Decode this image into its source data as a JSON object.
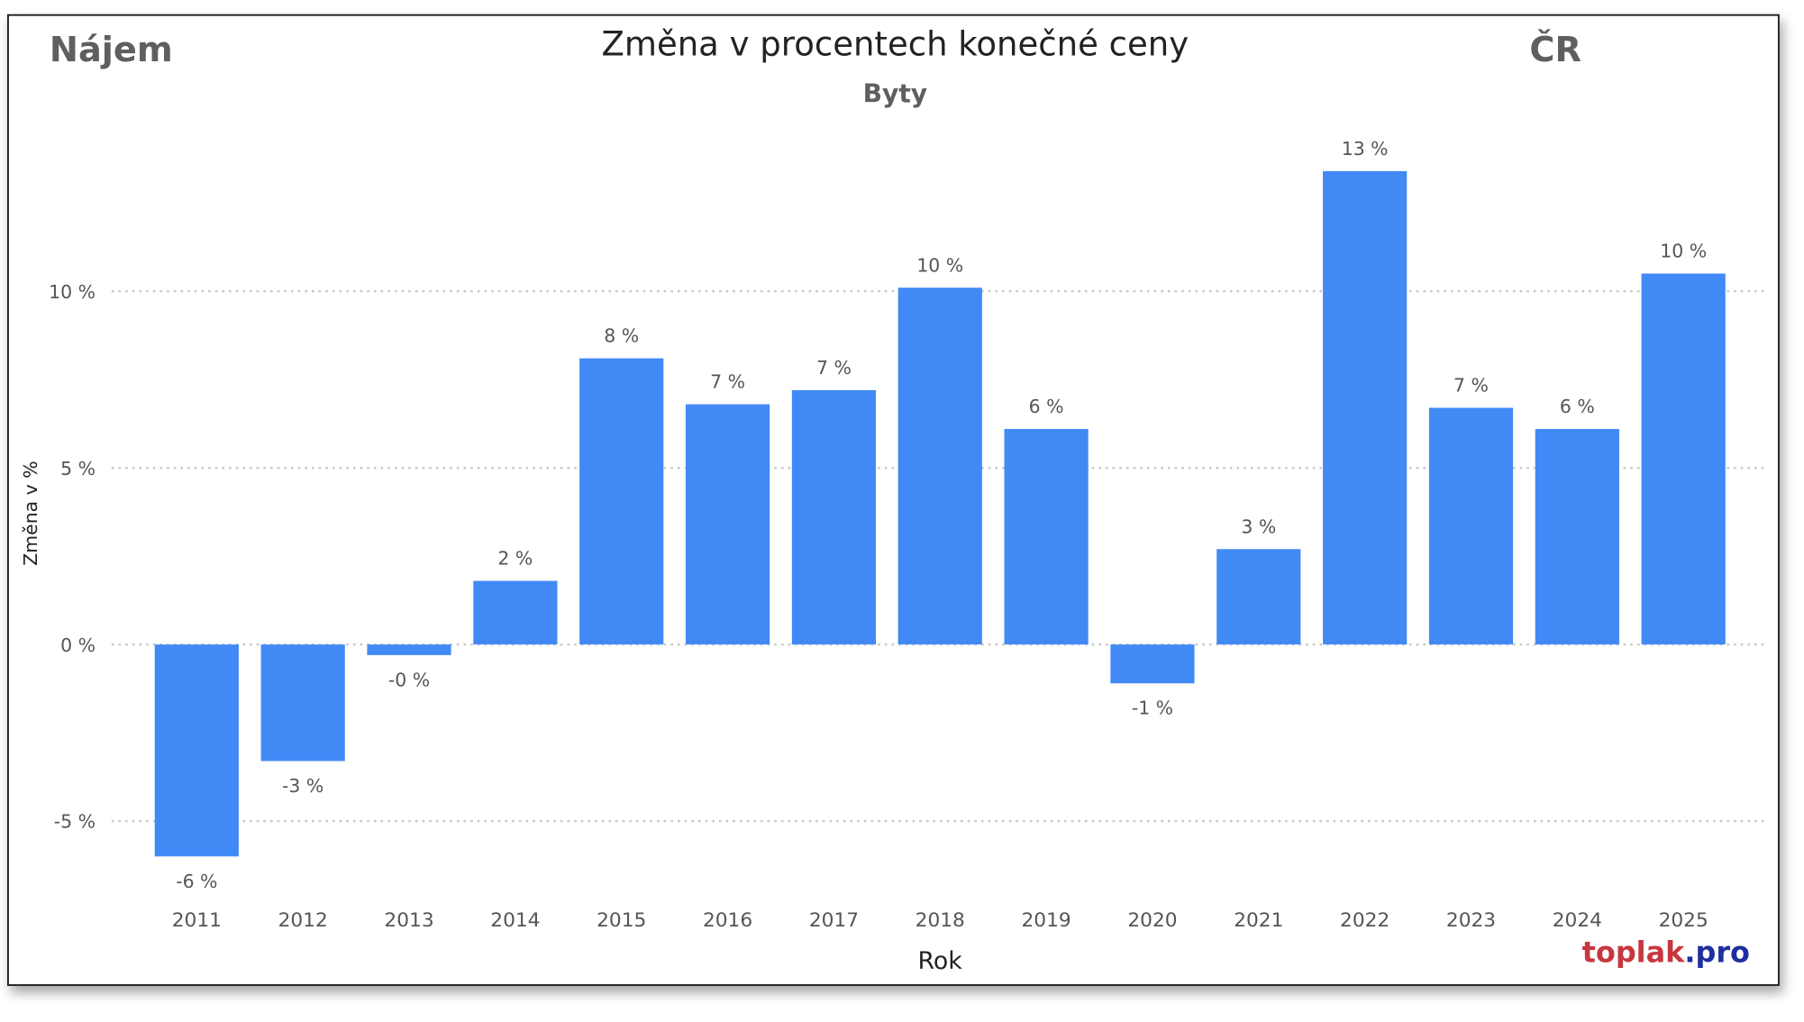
{
  "header": {
    "left_label": "Nájem",
    "right_label": "ČR",
    "watermark_part1": "toplak",
    "watermark_part2": ".pro"
  },
  "colors": {
    "bar": "#418AF5",
    "grid": "#C8C8C8",
    "watermark_red": "#C8363F",
    "watermark_blue": "#1F2F9E"
  },
  "chart_data": {
    "type": "bar",
    "title": "Změna v procentech konečné ceny",
    "subtitle": "Byty",
    "xlabel": "Rok",
    "ylabel": "Změna v %",
    "ylim": [
      -6.5,
      14.5
    ],
    "yticks": [
      -5,
      0,
      5,
      10
    ],
    "ytick_labels": [
      "-5 %",
      "0 %",
      "5 %",
      "10 %"
    ],
    "grid": true,
    "categories": [
      "2011",
      "2012",
      "2013",
      "2014",
      "2015",
      "2016",
      "2017",
      "2018",
      "2019",
      "2020",
      "2021",
      "2022",
      "2023",
      "2024",
      "2025"
    ],
    "values": [
      -6.0,
      -3.3,
      -0.3,
      1.8,
      8.1,
      6.8,
      7.2,
      10.1,
      6.1,
      -1.1,
      2.7,
      13.4,
      6.7,
      6.1,
      10.5
    ],
    "data_labels": [
      "-6 %",
      "-3 %",
      "-0 %",
      "2 %",
      "8 %",
      "7 %",
      "7 %",
      "10 %",
      "6 %",
      "-1 %",
      "3 %",
      "13 %",
      "7 %",
      "6 %",
      "10 %"
    ]
  }
}
